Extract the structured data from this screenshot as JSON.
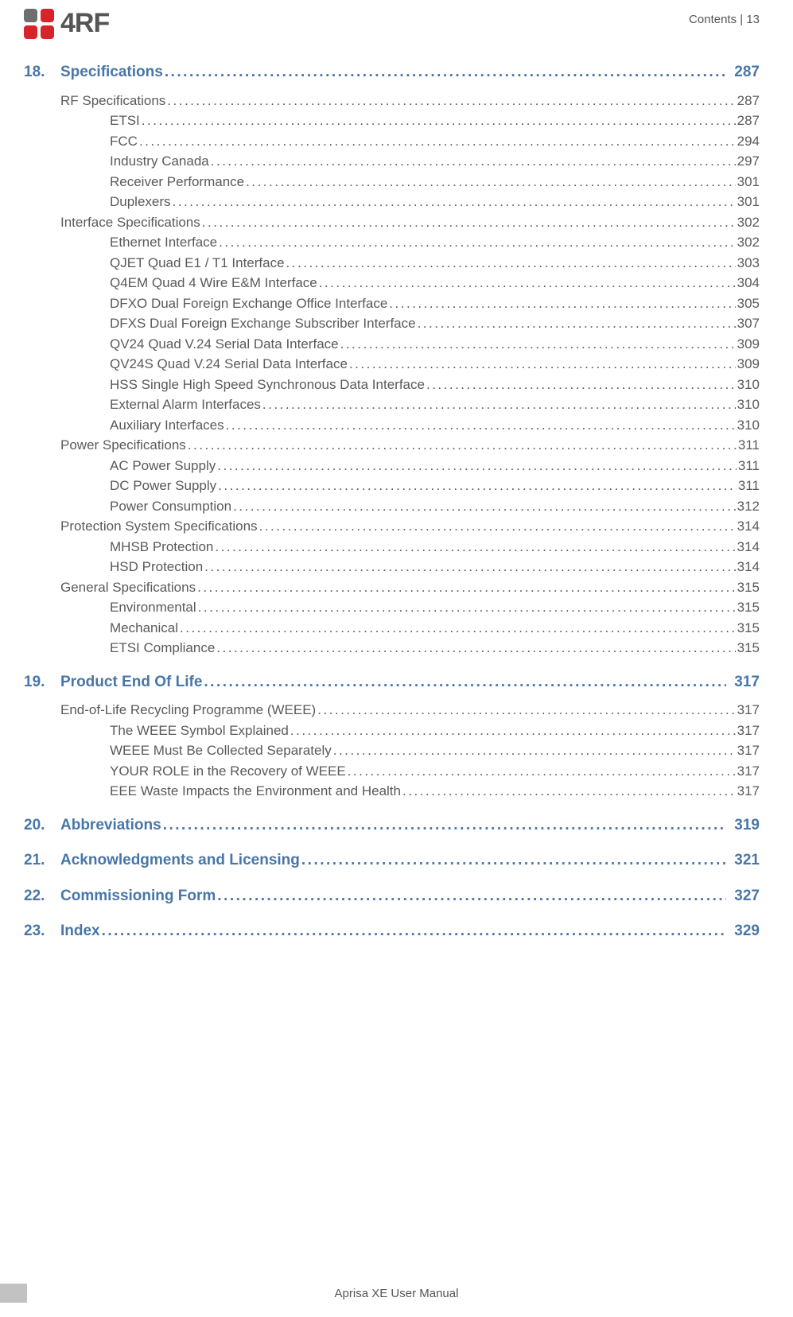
{
  "header": {
    "breadcrumb": "Contents  |  13",
    "logo_text": "4RF"
  },
  "footer": {
    "text": "Aprisa XE User Manual"
  },
  "colors": {
    "chapter_color": "#4876a8",
    "body_color": "#5a5a5a",
    "logo_red": "#d8232a",
    "logo_gray": "#6e6e6e"
  },
  "toc": [
    {
      "num": "18.",
      "title": "Specifications",
      "page": "287",
      "sections": [
        {
          "title": "RF Specifications",
          "page": "287",
          "subs": [
            {
              "title": "ETSI",
              "page": "287"
            },
            {
              "title": "FCC",
              "page": "294"
            },
            {
              "title": "Industry Canada",
              "page": "297"
            },
            {
              "title": "Receiver Performance",
              "page": "301"
            },
            {
              "title": "Duplexers",
              "page": "301"
            }
          ]
        },
        {
          "title": "Interface Specifications",
          "page": "302",
          "subs": [
            {
              "title": "Ethernet Interface",
              "page": "302"
            },
            {
              "title": "QJET Quad E1 / T1 Interface",
              "page": "303"
            },
            {
              "title": "Q4EM Quad 4 Wire E&M Interface",
              "page": "304"
            },
            {
              "title": "DFXO Dual Foreign Exchange Office Interface",
              "page": "305"
            },
            {
              "title": "DFXS Dual Foreign Exchange Subscriber Interface",
              "page": "307"
            },
            {
              "title": "QV24 Quad V.24 Serial Data Interface",
              "page": "309"
            },
            {
              "title": "QV24S Quad V.24 Serial Data Interface",
              "page": "309"
            },
            {
              "title": "HSS Single High Speed Synchronous Data Interface",
              "page": "310"
            },
            {
              "title": "External Alarm Interfaces",
              "page": "310"
            },
            {
              "title": "Auxiliary Interfaces",
              "page": "310"
            }
          ]
        },
        {
          "title": "Power Specifications",
          "page": "311",
          "subs": [
            {
              "title": "AC Power Supply",
              "page": "311"
            },
            {
              "title": "DC Power Supply",
              "page": "311"
            },
            {
              "title": "Power Consumption",
              "page": "312"
            }
          ]
        },
        {
          "title": "Protection System Specifications",
          "page": "314",
          "subs": [
            {
              "title": "MHSB Protection",
              "page": "314"
            },
            {
              "title": "HSD Protection",
              "page": "314"
            }
          ]
        },
        {
          "title": "General Specifications",
          "page": "315",
          "subs": [
            {
              "title": "Environmental",
              "page": "315"
            },
            {
              "title": "Mechanical",
              "page": "315"
            },
            {
              "title": "ETSI Compliance",
              "page": "315"
            }
          ]
        }
      ]
    },
    {
      "num": "19.",
      "title": "Product End Of Life",
      "page": "317",
      "sections": [
        {
          "title": "End-of-Life Recycling Programme (WEEE)",
          "page": "317",
          "subs": [
            {
              "title": "The WEEE Symbol Explained",
              "page": "317"
            },
            {
              "title": "WEEE Must Be Collected Separately",
              "page": "317"
            },
            {
              "title": "YOUR ROLE in the Recovery of WEEE",
              "page": "317"
            },
            {
              "title": "EEE Waste Impacts the Environment and Health",
              "page": "317"
            }
          ]
        }
      ]
    },
    {
      "num": "20.",
      "title": "Abbreviations",
      "page": "319",
      "sections": []
    },
    {
      "num": "21.",
      "title": "Acknowledgments and Licensing",
      "page": "321",
      "sections": []
    },
    {
      "num": "22.",
      "title": "Commissioning Form",
      "page": "327",
      "sections": []
    },
    {
      "num": "23.",
      "title": "Index",
      "page": "329",
      "sections": []
    }
  ]
}
